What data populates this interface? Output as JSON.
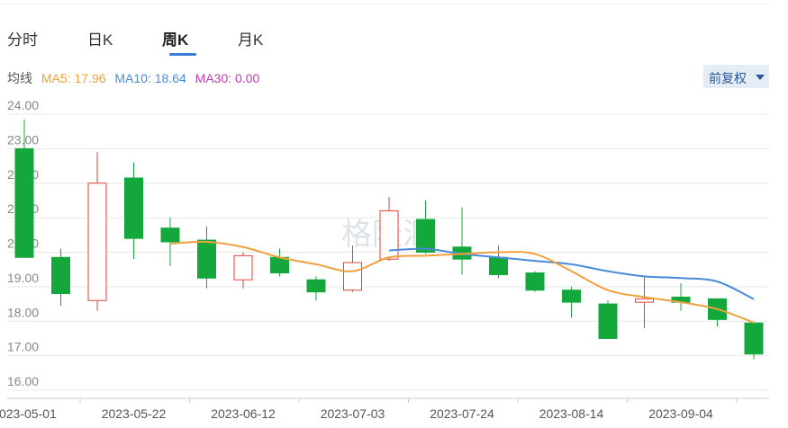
{
  "tabs": [
    {
      "label": "分时"
    },
    {
      "label": "日K"
    },
    {
      "label": "周K"
    },
    {
      "label": "月K"
    }
  ],
  "active_tab": "周K",
  "ma": {
    "title": "均线",
    "ma5": "MA5: 17.96",
    "ma10": "MA10: 18.64",
    "ma30": "MA30: 0.00"
  },
  "adjust": {
    "label": "前复权"
  },
  "colors": {
    "up": "#e0413a",
    "down": "#14a83c",
    "ma5": "#f0a03c",
    "ma10": "#4a8ad8",
    "ma30": "#c13db0",
    "grid": "#e8e8e8",
    "accent": "#3b7fd9"
  },
  "watermark": "格隆汇",
  "chart_data": {
    "type": "candlestick",
    "ylim": [
      16,
      24
    ],
    "y_ticks": [
      "16.00",
      "17.00",
      "18.00",
      "19.00",
      "20.00",
      "21.00",
      "22.00",
      "23.00",
      "24.00"
    ],
    "x_labels": [
      {
        "label": "2023-05-01",
        "index": 0
      },
      {
        "label": "2023-05-22",
        "index": 3
      },
      {
        "label": "2023-06-12",
        "index": 6
      },
      {
        "label": "2023-07-03",
        "index": 9
      },
      {
        "label": "2023-07-24",
        "index": 12
      },
      {
        "label": "2023-08-14",
        "index": 15
      },
      {
        "label": "2023-09-04",
        "index": 18
      }
    ],
    "candles": [
      {
        "date": "2023-05-01",
        "open": 23.0,
        "close": 19.85,
        "high": 23.85,
        "low": 19.85
      },
      {
        "date": "2023-05-08",
        "open": 19.85,
        "close": 18.8,
        "high": 20.1,
        "low": 18.45
      },
      {
        "date": "2023-05-15",
        "open": 18.6,
        "close": 22.0,
        "high": 22.9,
        "low": 18.3
      },
      {
        "date": "2023-05-22",
        "open": 22.15,
        "close": 20.4,
        "high": 22.6,
        "low": 19.8
      },
      {
        "date": "2023-05-29",
        "open": 20.7,
        "close": 20.3,
        "high": 21.0,
        "low": 19.6
      },
      {
        "date": "2023-06-05",
        "open": 20.35,
        "close": 19.25,
        "high": 20.75,
        "low": 18.95
      },
      {
        "date": "2023-06-12",
        "open": 19.2,
        "close": 19.9,
        "high": 20.0,
        "low": 18.95
      },
      {
        "date": "2023-06-19",
        "open": 19.85,
        "close": 19.4,
        "high": 20.1,
        "low": 19.3
      },
      {
        "date": "2023-06-26",
        "open": 19.2,
        "close": 18.85,
        "high": 19.3,
        "low": 18.6
      },
      {
        "date": "2023-07-03",
        "open": 18.9,
        "close": 19.7,
        "high": 20.2,
        "low": 18.85
      },
      {
        "date": "2023-07-10",
        "open": 19.8,
        "close": 21.2,
        "high": 21.6,
        "low": 19.75
      },
      {
        "date": "2023-07-17",
        "open": 20.95,
        "close": 20.0,
        "high": 21.5,
        "low": 19.95
      },
      {
        "date": "2023-07-24",
        "open": 20.15,
        "close": 19.8,
        "high": 21.3,
        "low": 19.35
      },
      {
        "date": "2023-07-31",
        "open": 19.85,
        "close": 19.35,
        "high": 20.2,
        "low": 19.25
      },
      {
        "date": "2023-08-07",
        "open": 19.4,
        "close": 18.9,
        "high": 19.45,
        "low": 18.85
      },
      {
        "date": "2023-08-14",
        "open": 18.9,
        "close": 18.55,
        "high": 19.0,
        "low": 18.1
      },
      {
        "date": "2023-08-21",
        "open": 18.5,
        "close": 17.5,
        "high": 18.6,
        "low": 17.5
      },
      {
        "date": "2023-08-28",
        "open": 18.55,
        "close": 18.65,
        "high": 19.3,
        "low": 17.8
      },
      {
        "date": "2023-09-04",
        "open": 18.7,
        "close": 18.55,
        "high": 19.1,
        "low": 18.3
      },
      {
        "date": "2023-09-11",
        "open": 18.65,
        "close": 18.05,
        "high": 18.65,
        "low": 17.85
      },
      {
        "date": "2023-09-18",
        "open": 17.95,
        "close": 17.05,
        "high": 17.95,
        "low": 16.9
      }
    ],
    "ma5_values": [
      null,
      null,
      null,
      null,
      20.25,
      20.3,
      20.15,
      19.85,
      19.65,
      19.45,
      19.85,
      19.9,
      19.95,
      20.0,
      19.95,
      19.45,
      18.9,
      18.7,
      18.55,
      18.35,
      17.96
    ],
    "ma10_values": [
      null,
      null,
      null,
      null,
      null,
      null,
      null,
      null,
      null,
      null,
      20.05,
      20.1,
      19.95,
      19.85,
      19.75,
      19.65,
      19.45,
      19.3,
      19.25,
      19.15,
      18.64
    ],
    "ma30_values": []
  }
}
